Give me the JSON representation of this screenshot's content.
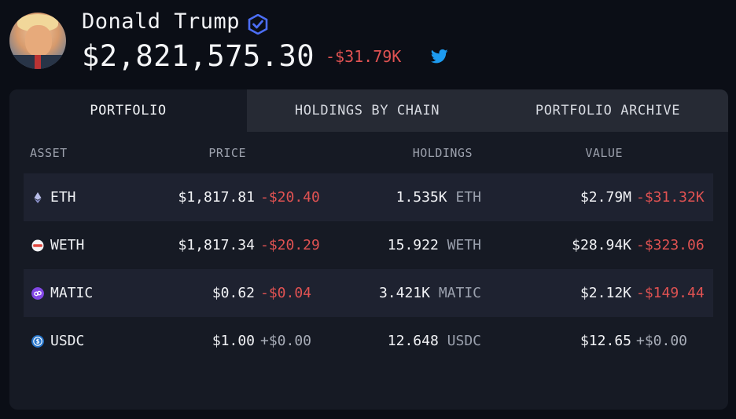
{
  "profile": {
    "name": "Donald Trump",
    "balance": "$2,821,575.30",
    "balance_change": "-$31.79K"
  },
  "tabs": [
    {
      "label": "PORTFOLIO",
      "active": true
    },
    {
      "label": "HOLDINGS BY CHAIN",
      "active": false
    },
    {
      "label": "PORTFOLIO ARCHIVE",
      "active": false
    }
  ],
  "columns": {
    "asset": "ASSET",
    "price": "PRICE",
    "holdings": "HOLDINGS",
    "value": "VALUE"
  },
  "rows": [
    {
      "asset": "ETH",
      "icon": "eth-icon",
      "price": "$1,817.81",
      "price_change": "-$20.40",
      "holding_amount": "1.535K",
      "holding_unit": "ETH",
      "value": "$2.79M",
      "value_change": "-$31.32K"
    },
    {
      "asset": "WETH",
      "icon": "weth-icon",
      "price": "$1,817.34",
      "price_change": "-$20.29",
      "holding_amount": "15.922",
      "holding_unit": "WETH",
      "value": "$28.94K",
      "value_change": "-$323.06"
    },
    {
      "asset": "MATIC",
      "icon": "matic-icon",
      "price": "$0.62",
      "price_change": "-$0.04",
      "holding_amount": "3.421K",
      "holding_unit": "MATIC",
      "value": "$2.12K",
      "value_change": "-$149.44"
    },
    {
      "asset": "USDC",
      "icon": "usdc-icon",
      "price": "$1.00",
      "price_change": "+$0.00",
      "holding_amount": "12.648",
      "holding_unit": "USDC",
      "value": "$12.65",
      "value_change": "+$0.00"
    }
  ],
  "colors": {
    "negative": "#e05252",
    "neutral": "#a8adb8",
    "twitter": "#1d9bf0",
    "verified": "#4c6ef5"
  }
}
